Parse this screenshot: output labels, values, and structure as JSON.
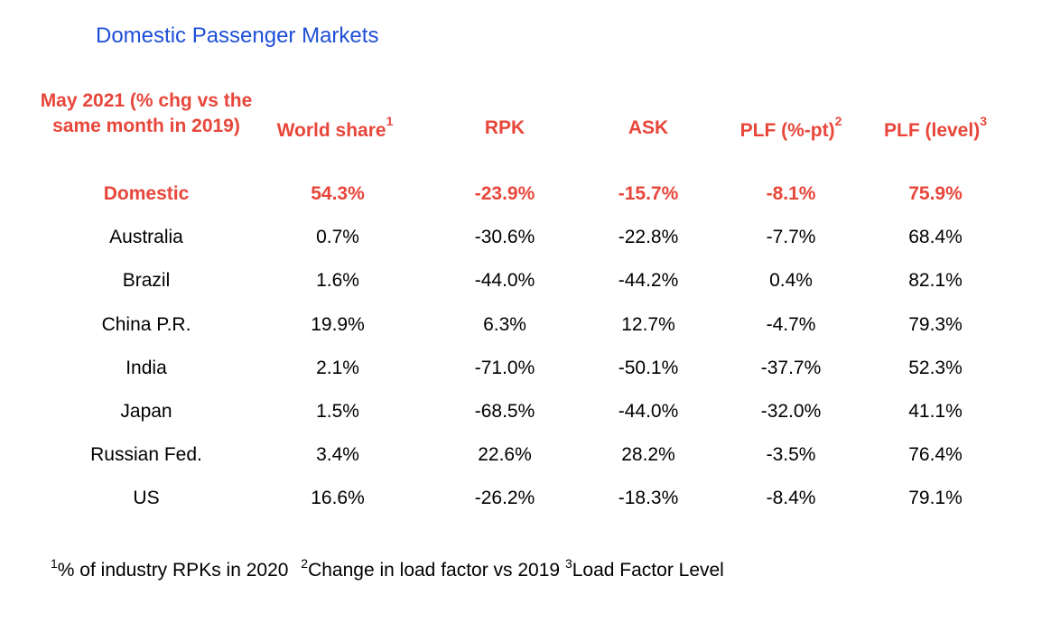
{
  "title": "Domestic Passenger Markets",
  "headers": {
    "period": "May 2021 (% chg vs the same month in 2019)",
    "world_share": "World share",
    "world_share_sup": "1",
    "rpk": "RPK",
    "ask": "ASK",
    "plf_pt": "PLF (%-pt)",
    "plf_pt_sup": "2",
    "plf_level": "PLF (level)",
    "plf_level_sup": "3"
  },
  "rows": [
    {
      "market": "Domestic",
      "world_share": "54.3%",
      "rpk": "-23.9%",
      "ask": "-15.7%",
      "plf_pt": "-8.1%",
      "plf_level": "75.9%"
    },
    {
      "market": "Australia",
      "world_share": "0.7%",
      "rpk": "-30.6%",
      "ask": "-22.8%",
      "plf_pt": "-7.7%",
      "plf_level": "68.4%"
    },
    {
      "market": "Brazil",
      "world_share": "1.6%",
      "rpk": "-44.0%",
      "ask": "-44.2%",
      "plf_pt": "0.4%",
      "plf_level": "82.1%"
    },
    {
      "market": "China P.R.",
      "world_share": "19.9%",
      "rpk": "6.3%",
      "ask": "12.7%",
      "plf_pt": "-4.7%",
      "plf_level": "79.3%"
    },
    {
      "market": "India",
      "world_share": "2.1%",
      "rpk": "-71.0%",
      "ask": "-50.1%",
      "plf_pt": "-37.7%",
      "plf_level": "52.3%"
    },
    {
      "market": "Japan",
      "world_share": "1.5%",
      "rpk": "-68.5%",
      "ask": "-44.0%",
      "plf_pt": "-32.0%",
      "plf_level": "41.1%"
    },
    {
      "market": "Russian Fed.",
      "world_share": "3.4%",
      "rpk": "22.6%",
      "ask": "28.2%",
      "plf_pt": "-3.5%",
      "plf_level": "76.4%"
    },
    {
      "market": "US",
      "world_share": "16.6%",
      "rpk": "-26.2%",
      "ask": "-18.3%",
      "plf_pt": "-8.4%",
      "plf_level": "79.1%"
    }
  ],
  "footnotes": [
    {
      "sup": "1",
      "text": "% of industry RPKs in 2020"
    },
    {
      "sup": "2",
      "text": "Change in load factor vs 2019"
    },
    {
      "sup": "3",
      "text": "Load Factor Level"
    }
  ],
  "colors": {
    "title": "#1f4fd8",
    "header": "#e8463a",
    "domestic_row": "#e8463a",
    "body_text": "#000000"
  }
}
